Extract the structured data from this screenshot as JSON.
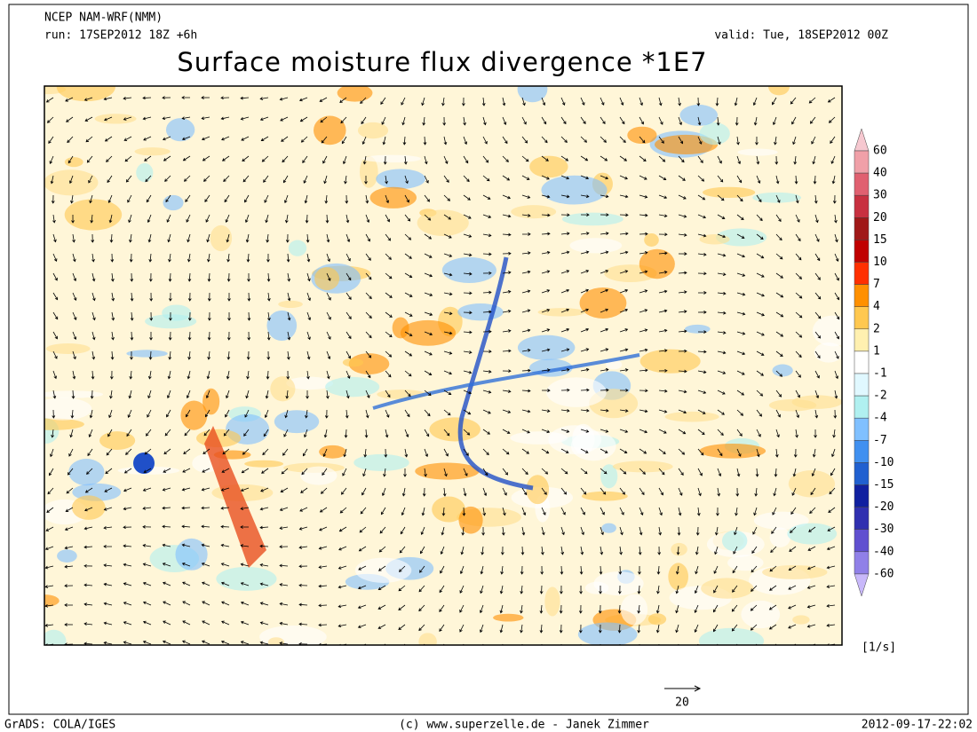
{
  "header": {
    "model": "NCEP NAM-WRF(NMM)",
    "run": "run: 17SEP2012 18Z +6h",
    "valid": "valid: Tue, 18SEP2012 00Z",
    "title": "Surface moisture flux divergence *1E7"
  },
  "colorbar": {
    "unit": "[1/s]",
    "levels": [
      60,
      40,
      30,
      20,
      15,
      10,
      7,
      4,
      2,
      1,
      -1,
      -2,
      -4,
      -7,
      -10,
      -15,
      -20,
      -30,
      -40,
      -60
    ],
    "colors": [
      "#f6c8d0",
      "#f0a0a8",
      "#e06070",
      "#c83040",
      "#a01818",
      "#c00000",
      "#ff3000",
      "#ff9000",
      "#ffc850",
      "#fff0b0",
      "#ffffff",
      "#e0f8ff",
      "#b0f0f0",
      "#80c0ff",
      "#4090f0",
      "#2060d0",
      "#1020a0",
      "#3030b0",
      "#6050d0",
      "#9080e8",
      "#c8b8fa"
    ]
  },
  "vector_reference": {
    "label": "20"
  },
  "footer": {
    "left": "GrADS: COLA/IGES",
    "center": "(c) www.superzelle.de - Janek Zimmer",
    "right": "2012-09-17-22:02"
  }
}
